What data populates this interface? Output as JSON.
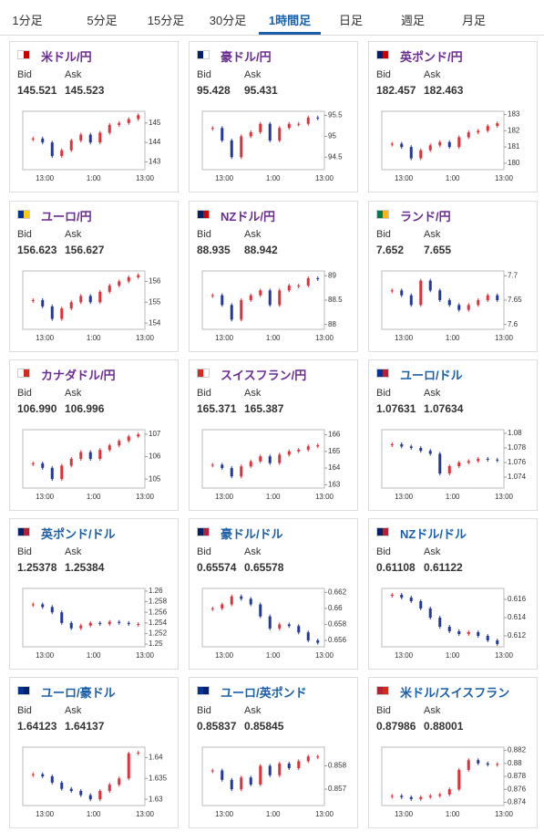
{
  "tabs": [
    "1分足",
    "5分足",
    "15分足",
    "30分足",
    "1時間足",
    "日足",
    "週足",
    "月足"
  ],
  "active_tab": 4,
  "labels": {
    "bid": "Bid",
    "ask": "Ask"
  },
  "cards": [
    {
      "name": "米ドル/円",
      "color": "#6a2c91",
      "bid": "145.521",
      "ask": "145.523",
      "type": "candlestick",
      "categories": [
        "13:00",
        "1:00",
        "13:00"
      ],
      "ylim": [
        142.6,
        145.6
      ],
      "yticks": [
        143,
        144,
        145
      ],
      "values": [
        144.2,
        144.0,
        143.3,
        143.6,
        144.1,
        144.4,
        144.0,
        144.5,
        144.9,
        145.0,
        145.2,
        145.4
      ]
    },
    {
      "name": "豪ドル/円",
      "color": "#6a2c91",
      "bid": "95.428",
      "ask": "95.431",
      "type": "candlestick",
      "categories": [
        "13:00",
        "1:00",
        "13:00"
      ],
      "ylim": [
        94.2,
        95.6
      ],
      "yticks": [
        94.5,
        95,
        95.5
      ],
      "values": [
        95.2,
        94.9,
        94.5,
        95.0,
        95.1,
        95.3,
        94.9,
        95.2,
        95.3,
        95.3,
        95.45,
        95.43
      ]
    },
    {
      "name": "英ポンド/円",
      "color": "#6a2c91",
      "bid": "182.457",
      "ask": "182.463",
      "type": "candlestick",
      "categories": [
        "13:00",
        "1:00",
        "13:00"
      ],
      "ylim": [
        179.6,
        183.2
      ],
      "yticks": [
        180,
        181,
        182,
        183
      ],
      "values": [
        181.2,
        181.0,
        180.3,
        180.8,
        181.1,
        181.3,
        181.0,
        181.6,
        181.9,
        182.0,
        182.3,
        182.46
      ]
    },
    {
      "name": "ユーロ/円",
      "color": "#6a2c91",
      "bid": "156.623",
      "ask": "156.627",
      "type": "candlestick",
      "categories": [
        "13:00",
        "1:00",
        "13:00"
      ],
      "ylim": [
        153.7,
        156.5
      ],
      "yticks": [
        154,
        155,
        156
      ],
      "values": [
        155.1,
        154.8,
        154.2,
        154.7,
        155.0,
        155.3,
        155.0,
        155.5,
        155.8,
        156.0,
        156.2,
        156.3
      ]
    },
    {
      "name": "NZドル/円",
      "color": "#6a2c91",
      "bid": "88.935",
      "ask": "88.942",
      "type": "candlestick",
      "categories": [
        "13:00",
        "1:00",
        "13:00"
      ],
      "ylim": [
        87.9,
        89.1
      ],
      "yticks": [
        88,
        88.5,
        89
      ],
      "values": [
        88.6,
        88.4,
        88.1,
        88.5,
        88.6,
        88.7,
        88.4,
        88.7,
        88.8,
        88.8,
        88.95,
        88.94
      ]
    },
    {
      "name": "ランド/円",
      "color": "#6a2c91",
      "bid": "7.652",
      "ask": "7.655",
      "type": "candlestick",
      "categories": [
        "13:00",
        "1:00",
        "13:00"
      ],
      "ylim": [
        7.59,
        7.71
      ],
      "yticks": [
        7.6,
        7.65,
        7.7
      ],
      "values": [
        7.67,
        7.66,
        7.64,
        7.69,
        7.67,
        7.65,
        7.64,
        7.63,
        7.64,
        7.65,
        7.66,
        7.65
      ]
    },
    {
      "name": "カナダドル/円",
      "color": "#6a2c91",
      "bid": "106.990",
      "ask": "106.996",
      "type": "candlestick",
      "categories": [
        "13:00",
        "1:00",
        "13:00"
      ],
      "ylim": [
        104.6,
        107.2
      ],
      "yticks": [
        105,
        106,
        107
      ],
      "values": [
        105.7,
        105.5,
        105.0,
        105.6,
        105.9,
        106.2,
        105.9,
        106.3,
        106.5,
        106.7,
        106.9,
        106.99
      ]
    },
    {
      "name": "スイスフラン/円",
      "color": "#6a2c91",
      "bid": "165.371",
      "ask": "165.387",
      "type": "candlestick",
      "categories": [
        "13:00",
        "1:00",
        "13:00"
      ],
      "ylim": [
        162.8,
        166.3
      ],
      "yticks": [
        163,
        164,
        165,
        166
      ],
      "values": [
        164.2,
        164.0,
        163.5,
        164.1,
        164.4,
        164.7,
        164.3,
        164.8,
        165.0,
        165.1,
        165.3,
        165.37
      ]
    },
    {
      "name": "ユーロ/ドル",
      "color": "#1a5fa8",
      "bid": "1.07631",
      "ask": "1.07634",
      "type": "candlestick",
      "categories": [
        "13:00",
        "1:00",
        "13:00"
      ],
      "ylim": [
        1.0725,
        1.0805
      ],
      "yticks": [
        1.074,
        1.076,
        1.078,
        1.08
      ],
      "values": [
        1.0785,
        1.0782,
        1.078,
        1.0776,
        1.0772,
        1.0745,
        1.0755,
        1.076,
        1.0762,
        1.0765,
        1.0764,
        1.0763
      ]
    },
    {
      "name": "英ポンド/ドル",
      "color": "#1a5fa8",
      "bid": "1.25378",
      "ask": "1.25384",
      "type": "candlestick",
      "categories": [
        "13:00",
        "1:00",
        "13:00"
      ],
      "ylim": [
        1.2495,
        1.2605
      ],
      "yticks": [
        1.25,
        1.252,
        1.254,
        1.256,
        1.258,
        1.26
      ],
      "values": [
        1.2575,
        1.257,
        1.256,
        1.254,
        1.253,
        1.2535,
        1.254,
        1.2538,
        1.2542,
        1.254,
        1.2538,
        1.2538
      ]
    },
    {
      "name": "豪ドル/ドル",
      "color": "#1a5fa8",
      "bid": "0.65574",
      "ask": "0.65578",
      "type": "candlestick",
      "categories": [
        "13:00",
        "1:00",
        "13:00"
      ],
      "ylim": [
        0.6552,
        0.6625
      ],
      "yticks": [
        0.656,
        0.658,
        0.66,
        0.662
      ],
      "values": [
        0.66,
        0.6605,
        0.6615,
        0.6612,
        0.6605,
        0.659,
        0.6575,
        0.658,
        0.6578,
        0.657,
        0.656,
        0.6557
      ]
    },
    {
      "name": "NZドル/ドル",
      "color": "#1a5fa8",
      "bid": "0.61108",
      "ask": "0.61122",
      "type": "candlestick",
      "categories": [
        "13:00",
        "1:00",
        "13:00"
      ],
      "ylim": [
        0.6108,
        0.6172
      ],
      "yticks": [
        0.612,
        0.614,
        0.616
      ],
      "values": [
        0.6165,
        0.6162,
        0.6158,
        0.615,
        0.614,
        0.613,
        0.6125,
        0.6122,
        0.6124,
        0.612,
        0.6115,
        0.6111
      ]
    },
    {
      "name": "ユーロ/豪ドル",
      "color": "#1a5fa8",
      "bid": "1.64123",
      "ask": "1.64137",
      "type": "candlestick",
      "categories": [
        "13:00",
        "1:00",
        "13:00"
      ],
      "ylim": [
        1.6285,
        1.6425
      ],
      "yticks": [
        1.63,
        1.635,
        1.64
      ],
      "values": [
        1.636,
        1.6355,
        1.634,
        1.6325,
        1.632,
        1.631,
        1.63,
        1.632,
        1.6335,
        1.635,
        1.641,
        1.6412
      ]
    },
    {
      "name": "ユーロ/英ポンド",
      "color": "#1a5fa8",
      "bid": "0.85837",
      "ask": "0.85845",
      "type": "candlestick",
      "categories": [
        "13:00",
        "1:00",
        "13:00"
      ],
      "ylim": [
        0.8563,
        0.8588
      ],
      "yticks": [
        0.857,
        0.858
      ],
      "values": [
        0.8578,
        0.8574,
        0.857,
        0.8575,
        0.8572,
        0.858,
        0.8576,
        0.8581,
        0.8579,
        0.8582,
        0.8584,
        0.8584
      ]
    },
    {
      "name": "米ドル/スイスフラン",
      "color": "#1a5fa8",
      "bid": "0.87986",
      "ask": "0.88001",
      "type": "candlestick",
      "categories": [
        "13:00",
        "1:00",
        "13:00"
      ],
      "ylim": [
        0.8735,
        0.8825
      ],
      "yticks": [
        0.874,
        0.876,
        0.878,
        0.88,
        0.882
      ],
      "values": [
        0.875,
        0.8748,
        0.8745,
        0.8748,
        0.875,
        0.8752,
        0.876,
        0.879,
        0.8805,
        0.88,
        0.8798,
        0.8799
      ]
    }
  ]
}
